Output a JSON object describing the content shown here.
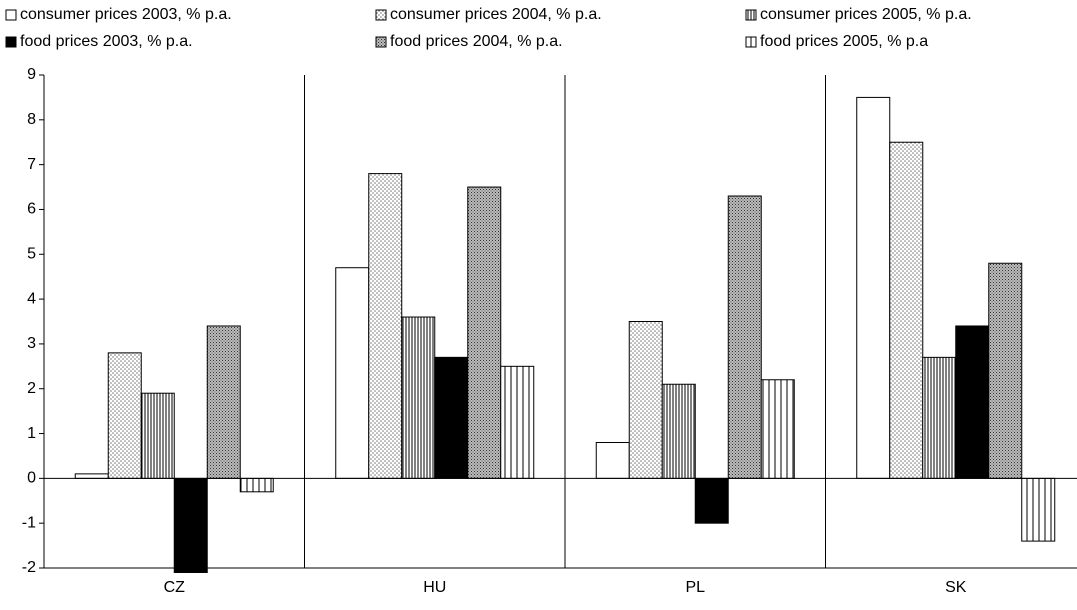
{
  "chart_data": {
    "type": "bar",
    "categories": [
      "CZ",
      "HU",
      "PL",
      "SK"
    ],
    "series": [
      {
        "name": "consumer prices 2003, % p.a.",
        "color": "#ffffff",
        "pattern": "none",
        "values": [
          0.1,
          4.7,
          0.8,
          8.5
        ]
      },
      {
        "name": "consumer prices 2004, % p.a.",
        "color": "#ffffff",
        "pattern": "dots",
        "values": [
          2.8,
          6.8,
          3.5,
          7.5
        ]
      },
      {
        "name": "consumer prices 2005, % p.a.",
        "color": "#ffffff",
        "pattern": "vlines",
        "values": [
          1.9,
          3.6,
          2.1,
          2.7
        ]
      },
      {
        "name": "food prices 2003, % p.a.",
        "color": "#000000",
        "pattern": "none",
        "values": [
          -2.1,
          2.7,
          -1.0,
          3.4
        ]
      },
      {
        "name": "food prices 2004, % p.a.",
        "color": "#ffffff",
        "pattern": "grid",
        "values": [
          3.4,
          6.5,
          6.3,
          4.8
        ]
      },
      {
        "name": "food prices 2005, % p.a",
        "color": "#ffffff",
        "pattern": "vlines-wide",
        "values": [
          -0.3,
          2.5,
          2.2,
          -1.4
        ]
      }
    ],
    "ylim": [
      -2,
      9
    ],
    "yticks": [
      -2,
      -1,
      0,
      1,
      2,
      3,
      4,
      5,
      6,
      7,
      8,
      9
    ],
    "grid": false
  }
}
